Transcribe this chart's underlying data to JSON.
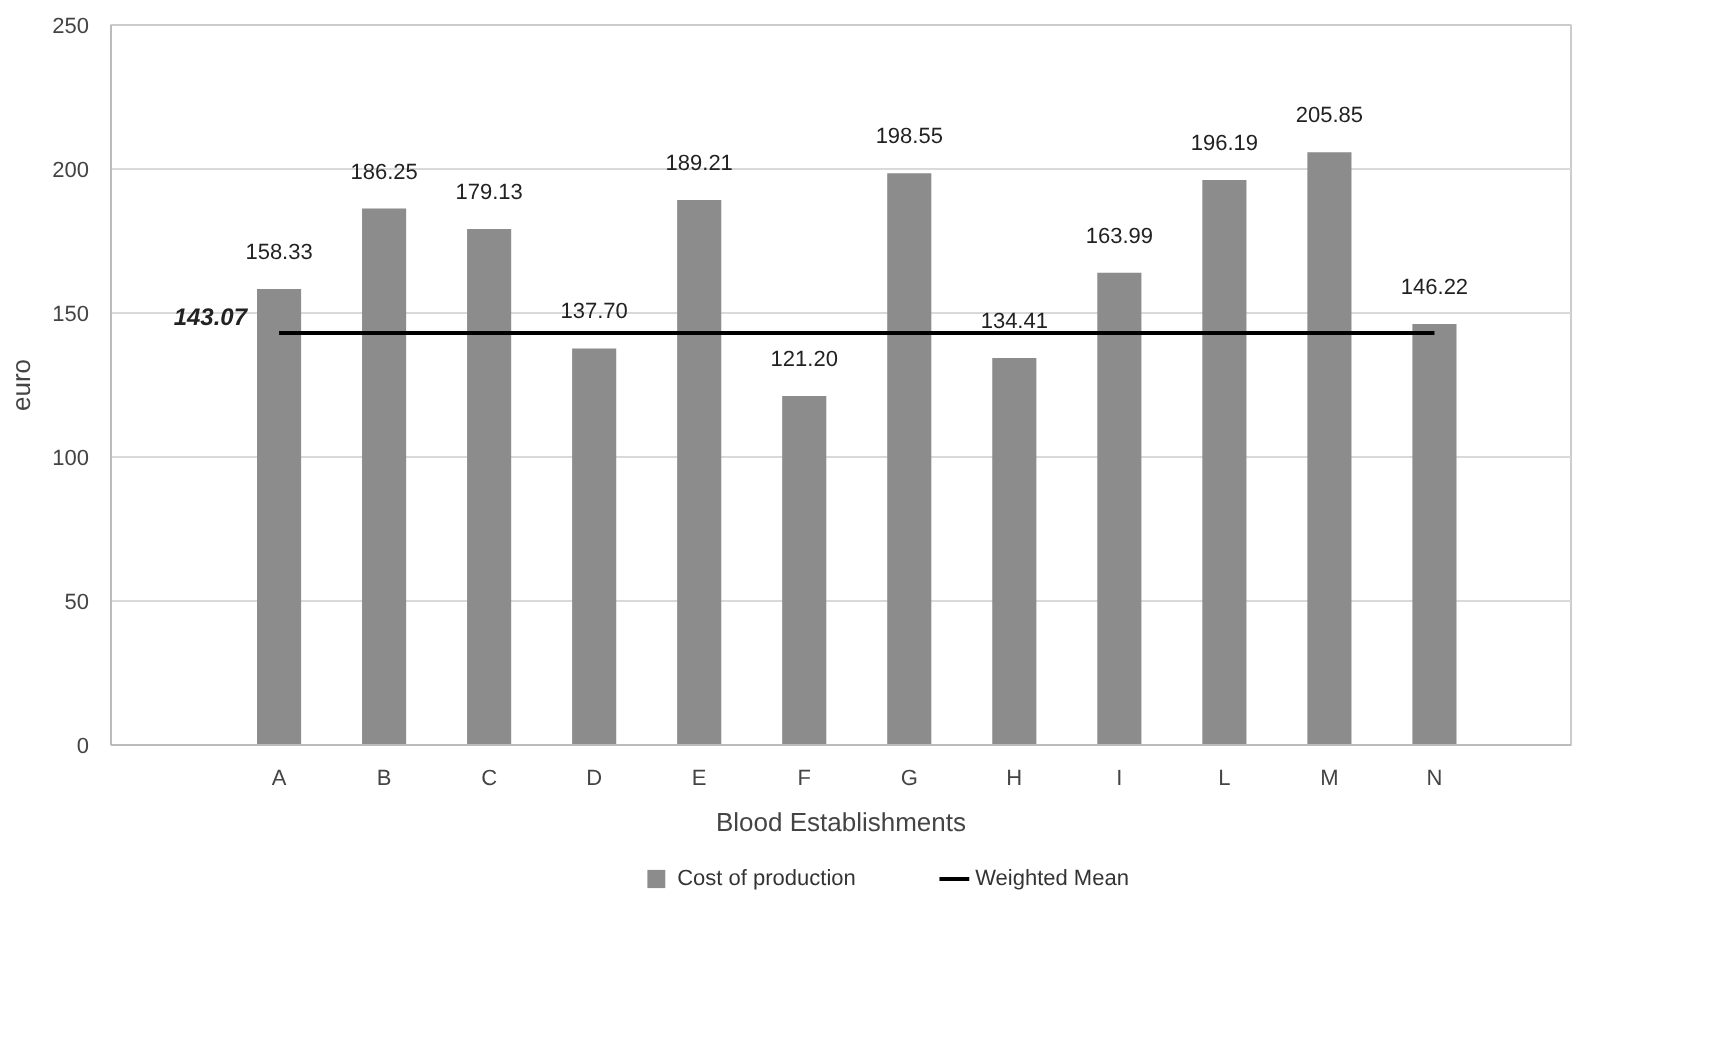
{
  "chart_data": {
    "type": "bar",
    "xlabel": "Blood Establishments",
    "ylabel": "euro",
    "categories": [
      "A",
      "B",
      "C",
      "D",
      "E",
      "F",
      "G",
      "H",
      "I",
      "L",
      "M",
      "N"
    ],
    "series": [
      {
        "name": "Cost of production",
        "color": "#8c8c8c",
        "values": [
          158.33,
          186.25,
          179.13,
          137.7,
          189.21,
          121.2,
          198.55,
          134.41,
          163.99,
          196.19,
          205.85,
          146.22
        ],
        "value_labels": [
          "158.33",
          "186.25",
          "179.13",
          "137.70",
          "189.21",
          "121.20",
          "198.55",
          "134.41",
          "163.99",
          "196.19",
          "205.85",
          "146.22"
        ]
      },
      {
        "name": "Weighted Mean",
        "type": "line",
        "color": "#000000",
        "values": [
          143.07,
          143.07,
          143.07,
          143.07,
          143.07,
          143.07,
          143.07,
          143.07,
          143.07,
          143.07,
          143.07,
          143.07
        ],
        "value_labels": [
          "143.07",
          null,
          null,
          null,
          null,
          null,
          null,
          null,
          null,
          null,
          null,
          null
        ]
      }
    ],
    "ylim": [
      0,
      250
    ],
    "yticks": [
      0,
      50,
      100,
      150,
      200,
      250
    ],
    "grid": "y",
    "legend": "bottom"
  }
}
